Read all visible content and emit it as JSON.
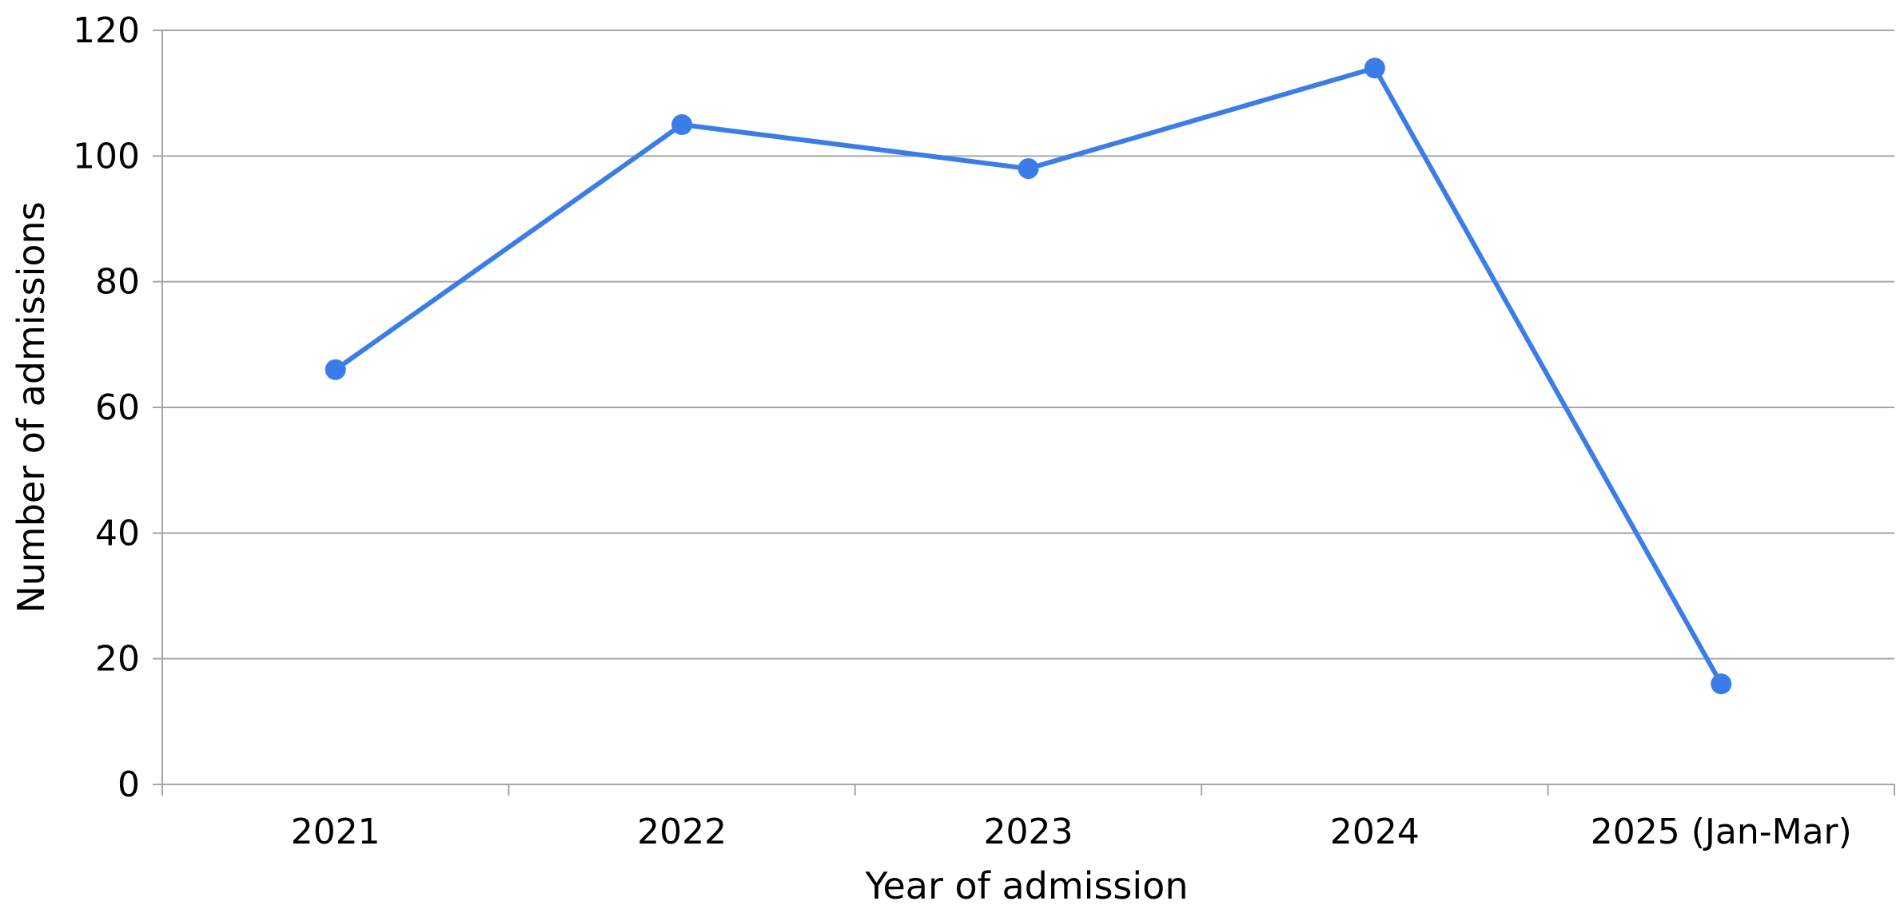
{
  "chart_data": {
    "type": "line",
    "categories": [
      "2021",
      "2022",
      "2023",
      "2024",
      "2025 (Jan-Mar)"
    ],
    "series": [
      {
        "values": [
          66,
          105,
          98,
          114,
          16
        ],
        "color": "#3b7de8"
      }
    ],
    "xlabel": "Year of admission",
    "ylabel": "Number of admissions",
    "ylim": [
      0,
      120
    ],
    "yticks": [
      "0",
      "20",
      "40",
      "60",
      "80",
      "100",
      "120"
    ],
    "grid": "horizontal",
    "legend": "none"
  }
}
